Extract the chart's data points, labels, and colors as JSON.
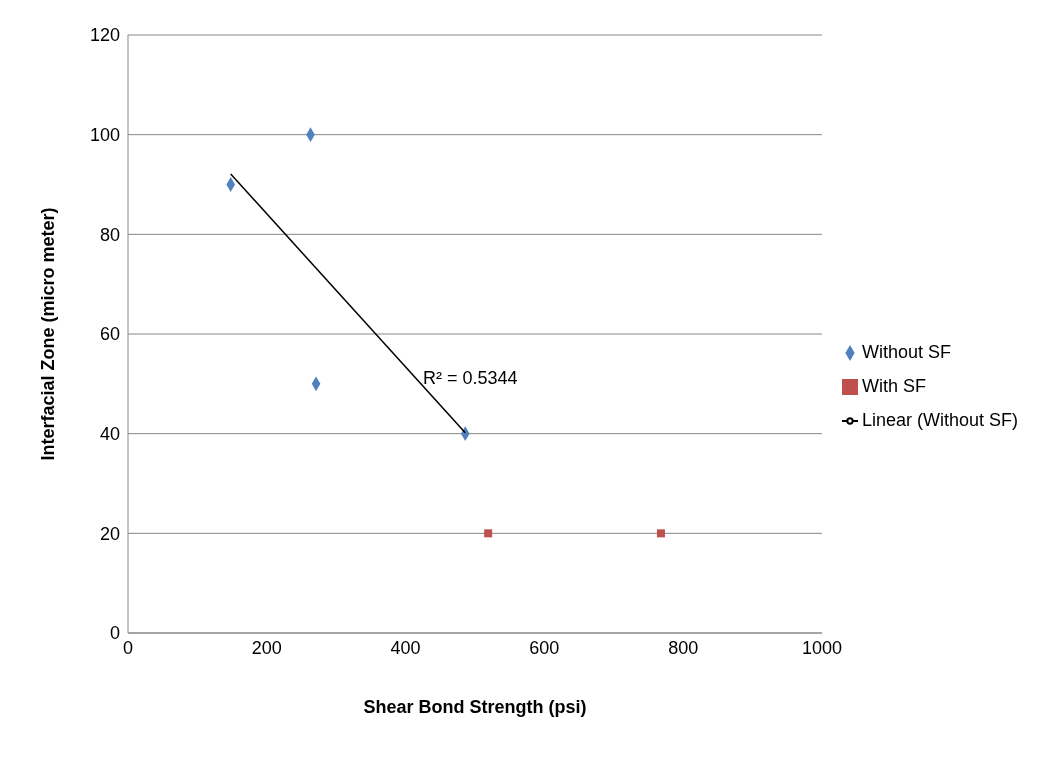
{
  "chart_data": {
    "type": "scatter",
    "xlabel": "Shear Bond Strength (psi)",
    "ylabel": "Interfacial Zone (micro meter)",
    "xlim": [
      0,
      1000
    ],
    "xticks": [
      0,
      200,
      400,
      600,
      800,
      1000
    ],
    "ylim": [
      0,
      120
    ],
    "yticks": [
      0,
      20,
      40,
      60,
      80,
      100,
      120
    ],
    "grid": "y",
    "legend": "right",
    "series": [
      {
        "name": "Without SF",
        "marker": "diamond",
        "color": "#4f81bd",
        "x": [
          148,
          263,
          271,
          486
        ],
        "values": [
          90,
          100,
          50,
          40
        ]
      },
      {
        "name": "With SF",
        "marker": "square",
        "color": "#c0504d",
        "x": [
          519,
          768
        ],
        "values": [
          20,
          20
        ]
      },
      {
        "name": "Linear (Without SF)",
        "type": "line",
        "marker": "none",
        "color": "#000000",
        "x": [
          148,
          486
        ],
        "values": [
          92.1,
          40.2
        ]
      }
    ],
    "annotations": [
      "R² = 0.5344"
    ]
  }
}
